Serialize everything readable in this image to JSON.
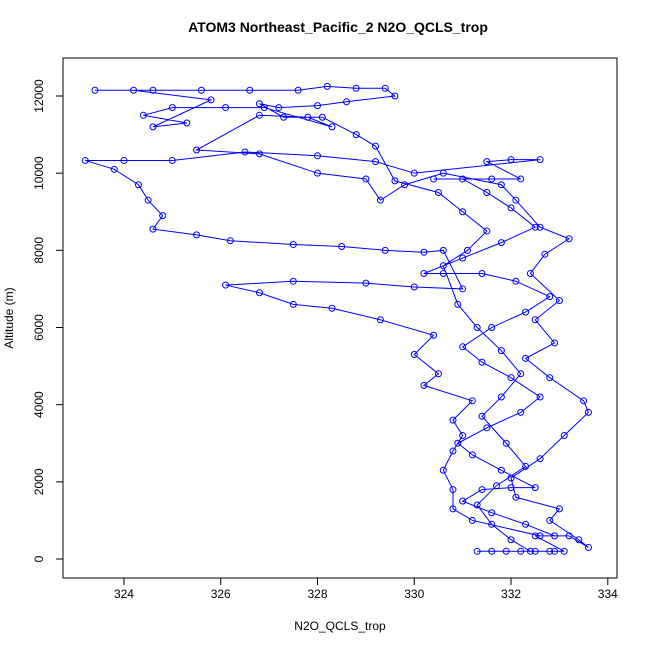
{
  "chart_data": {
    "type": "line",
    "markers": true,
    "title": "ATOM3 Northeast_Pacific_2 N2O_QCLS_trop",
    "x_label": "N2O_QCLS_trop",
    "y_label": "Altitude (m)",
    "xlim": [
      322.74,
      334.19
    ],
    "ylim": [
      -492,
      12985
    ],
    "xticks": [
      324,
      326,
      328,
      330,
      332,
      334
    ],
    "yticks": [
      0,
      2000,
      4000,
      6000,
      8000,
      10000,
      12000
    ],
    "grid": false,
    "series": [
      {
        "color": "#0000ff",
        "x": [
          331.3,
          331.6,
          331.9,
          332.2,
          332.5,
          332.8,
          333.1,
          332.5,
          332.9,
          332.3,
          331.6,
          331.0,
          331.4,
          332.0,
          332.5,
          331.8,
          331.2,
          330.9,
          331.5,
          332.2,
          332.6,
          332.0,
          331.4,
          331.0,
          331.6,
          332.3,
          332.8,
          332.1,
          331.4,
          330.6,
          330.2,
          331.0,
          331.8,
          332.5,
          332.0,
          331.5,
          331.0,
          330.4,
          331.6,
          332.2,
          331.5,
          332.0,
          332.6,
          330.0,
          329.2,
          328.0,
          326.5,
          325.0,
          324.0,
          323.2,
          323.8,
          324.3,
          324.5,
          324.8,
          324.6,
          325.5,
          326.2,
          327.5,
          328.5,
          329.4,
          330.2,
          330.6,
          331.0,
          330.0,
          329.0,
          327.5,
          326.1,
          326.8,
          327.5,
          328.3,
          329.3,
          330.4,
          330.0,
          330.5,
          330.2,
          331.2,
          330.8,
          331.0,
          330.8,
          330.6,
          330.8,
          330.8,
          331.2,
          332.6,
          333.2,
          333.6,
          333.4,
          332.8,
          333.0,
          332.1,
          332.0,
          332.6,
          333.1,
          333.6,
          333.5,
          332.8,
          332.3,
          332.9,
          332.5,
          333.0,
          332.4,
          332.7,
          333.2,
          332.6,
          332.1,
          331.8,
          330.6,
          329.8,
          329.3,
          329.0,
          328.0,
          326.8,
          325.5,
          326.8,
          327.8,
          328.3,
          326.9,
          326.1,
          325.0,
          324.4,
          325.3,
          324.6,
          325.8,
          324.2,
          323.4,
          324.6,
          325.6,
          326.6,
          327.6,
          328.2,
          328.8,
          329.4,
          329.6,
          328.6,
          328.0,
          327.2,
          326.8,
          327.3,
          328.1,
          328.8,
          329.2,
          329.6,
          330.5,
          331.0,
          331.5,
          331.1,
          330.6,
          330.9,
          331.3,
          331.8,
          332.2,
          331.8,
          331.4,
          331.9,
          332.3,
          331.7,
          331.3,
          331.6,
          332.0,
          332.4,
          332.9
        ],
        "y": [
          200,
          200,
          200,
          200,
          200,
          200,
          200,
          600,
          600,
          900,
          1200,
          1500,
          1800,
          1850,
          1850,
          2300,
          2700,
          3000,
          3400,
          3800,
          4200,
          4700,
          5100,
          5500,
          6000,
          6400,
          6800,
          7200,
          7400,
          7400,
          7400,
          7800,
          8200,
          8600,
          9100,
          9500,
          9850,
          9850,
          9850,
          9850,
          10300,
          10350,
          10350,
          10000,
          10300,
          10450,
          10550,
          10330,
          10330,
          10330,
          10100,
          9700,
          9300,
          8900,
          8550,
          8400,
          8250,
          8150,
          8100,
          8000,
          7950,
          8000,
          7000,
          7050,
          7150,
          7200,
          7100,
          6900,
          6600,
          6500,
          6200,
          5800,
          5300,
          4800,
          4500,
          4100,
          3600,
          3200,
          2800,
          2300,
          1800,
          1300,
          1000,
          600,
          600,
          300,
          500,
          1000,
          1300,
          1600,
          2100,
          2600,
          3200,
          3800,
          4100,
          4700,
          5200,
          5600,
          6200,
          6700,
          7400,
          7900,
          8300,
          8600,
          9300,
          9700,
          10000,
          9700,
          9300,
          9850,
          10000,
          10500,
          10600,
          11500,
          11450,
          11200,
          11700,
          11700,
          11700,
          11500,
          11300,
          11200,
          11900,
          12150,
          12150,
          12150,
          12150,
          12150,
          12150,
          12250,
          12200,
          12200,
          12000,
          11850,
          11750,
          11700,
          11800,
          11450,
          11450,
          11000,
          10700,
          9800,
          9500,
          9000,
          8500,
          8000,
          7600,
          6600,
          6000,
          5400,
          4800,
          4200,
          3700,
          3000,
          2400,
          1900,
          1400,
          900,
          500,
          200,
          200
        ]
      }
    ]
  }
}
